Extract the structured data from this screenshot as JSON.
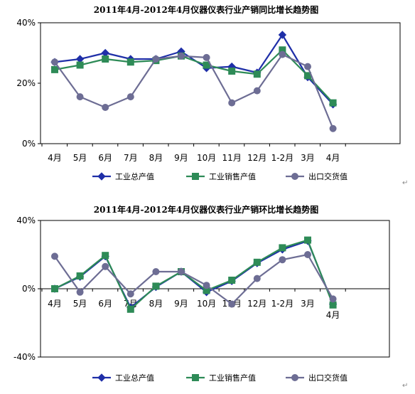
{
  "chart_data": [
    {
      "type": "line",
      "title": "2011年4月-2012年4月仪器仪表行业产销同比增长趋势图",
      "xlabel": "",
      "ylabel": "",
      "categories": [
        "4月",
        "5月",
        "6月",
        "7月",
        "8月",
        "9月",
        "10月",
        "11月",
        "12月",
        "1-2月",
        "3月",
        "4月"
      ],
      "ylim": [
        0,
        40
      ],
      "y_ticks": [
        "0%",
        "20%",
        "40%"
      ],
      "grid": false,
      "legend_position": "bottom",
      "series": [
        {
          "name": "工业总产值",
          "color": "#1f2fa8",
          "marker": "diamond",
          "values": [
            27.0,
            28.0,
            30.0,
            28.0,
            28.0,
            30.5,
            25.0,
            25.5,
            23.5,
            36.0,
            22.0,
            13.0
          ]
        },
        {
          "name": "工业销售产值",
          "color": "#2e8b57",
          "marker": "square",
          "values": [
            24.5,
            26.0,
            28.0,
            27.0,
            27.5,
            29.0,
            26.0,
            24.0,
            23.0,
            31.0,
            22.5,
            13.5
          ]
        },
        {
          "name": "出口交货值",
          "color": "#6d6d94",
          "marker": "circle",
          "values": [
            27.0,
            15.5,
            12.0,
            15.5,
            28.0,
            29.0,
            28.5,
            13.5,
            17.5,
            29.5,
            25.5,
            5.0
          ]
        }
      ]
    },
    {
      "type": "line",
      "title": "2011年4月-2012年4月仪器仪表行业产销环比增长趋势图",
      "xlabel": "",
      "ylabel": "",
      "categories": [
        "4月",
        "5月",
        "6月",
        "7月",
        "8月",
        "9月",
        "10月",
        "11月",
        "12月",
        "1-2月",
        "3月",
        "4月"
      ],
      "ylim": [
        -40,
        40
      ],
      "y_ticks": [
        "-40%",
        "0%",
        "40%"
      ],
      "grid": false,
      "legend_position": "bottom",
      "series": [
        {
          "name": "工业总产值",
          "color": "#1f2fa8",
          "marker": "diamond",
          "values": [
            0.0,
            7.0,
            19.0,
            -11.0,
            1.0,
            10.0,
            -2.0,
            4.5,
            15.0,
            23.0,
            28.0,
            -9.0
          ]
        },
        {
          "name": "工业销售产值",
          "color": "#2e8b57",
          "marker": "square",
          "values": [
            0.0,
            7.5,
            19.5,
            -12.0,
            1.5,
            10.0,
            -1.0,
            5.0,
            15.5,
            24.0,
            28.5,
            -9.5
          ]
        },
        {
          "name": "出口交货值",
          "color": "#6d6d94",
          "marker": "circle",
          "values": [
            19.0,
            -2.0,
            13.0,
            -3.0,
            10.0,
            10.0,
            2.0,
            -9.0,
            6.0,
            17.0,
            20.0,
            -6.0
          ]
        }
      ]
    }
  ],
  "marks": {
    "corner_glyph": "↵"
  }
}
